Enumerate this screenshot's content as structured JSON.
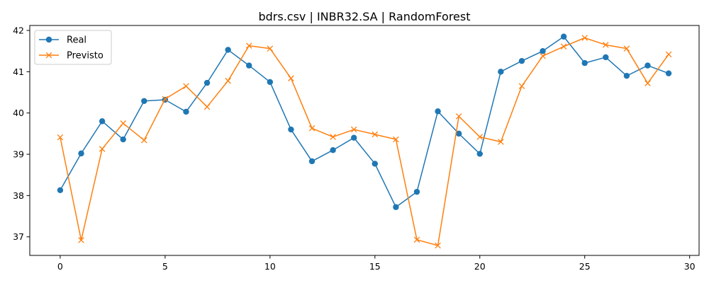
{
  "chart_data": {
    "type": "line",
    "title": "bdrs.csv | INBR32.SA | RandomForest",
    "xlabel": "",
    "ylabel": "",
    "xlim": [
      -1.45,
      30.45
    ],
    "ylim": [
      36.55,
      42.12
    ],
    "x_ticks": [
      0,
      5,
      10,
      15,
      20,
      25,
      30
    ],
    "y_ticks": [
      37,
      38,
      39,
      40,
      41,
      42
    ],
    "grid": false,
    "legend_position": "top-left",
    "x": [
      0,
      1,
      2,
      3,
      4,
      5,
      6,
      7,
      8,
      9,
      10,
      11,
      12,
      13,
      14,
      15,
      16,
      17,
      18,
      19,
      20,
      21,
      22,
      23,
      24,
      25,
      26,
      27,
      28,
      29
    ],
    "series": [
      {
        "name": "Real",
        "color": "#1f77b4",
        "marker": "circle",
        "values": [
          38.13,
          39.02,
          39.8,
          39.36,
          40.29,
          40.32,
          40.03,
          40.73,
          41.53,
          41.15,
          40.75,
          39.6,
          38.83,
          39.1,
          39.4,
          38.77,
          37.72,
          38.09,
          40.04,
          39.5,
          39.01,
          41.0,
          41.26,
          41.5,
          41.85,
          41.21,
          41.35,
          40.9,
          41.15,
          40.96
        ]
      },
      {
        "name": "Previsto",
        "color": "#ff7f0e",
        "marker": "x",
        "values": [
          39.41,
          36.92,
          39.13,
          39.75,
          39.34,
          40.34,
          40.65,
          40.15,
          40.78,
          41.63,
          41.56,
          40.84,
          39.63,
          39.42,
          39.6,
          39.48,
          39.36,
          36.93,
          36.79,
          39.92,
          39.42,
          39.3,
          40.65,
          41.38,
          41.61,
          41.82,
          41.65,
          41.56,
          40.72,
          41.42
        ]
      }
    ]
  }
}
